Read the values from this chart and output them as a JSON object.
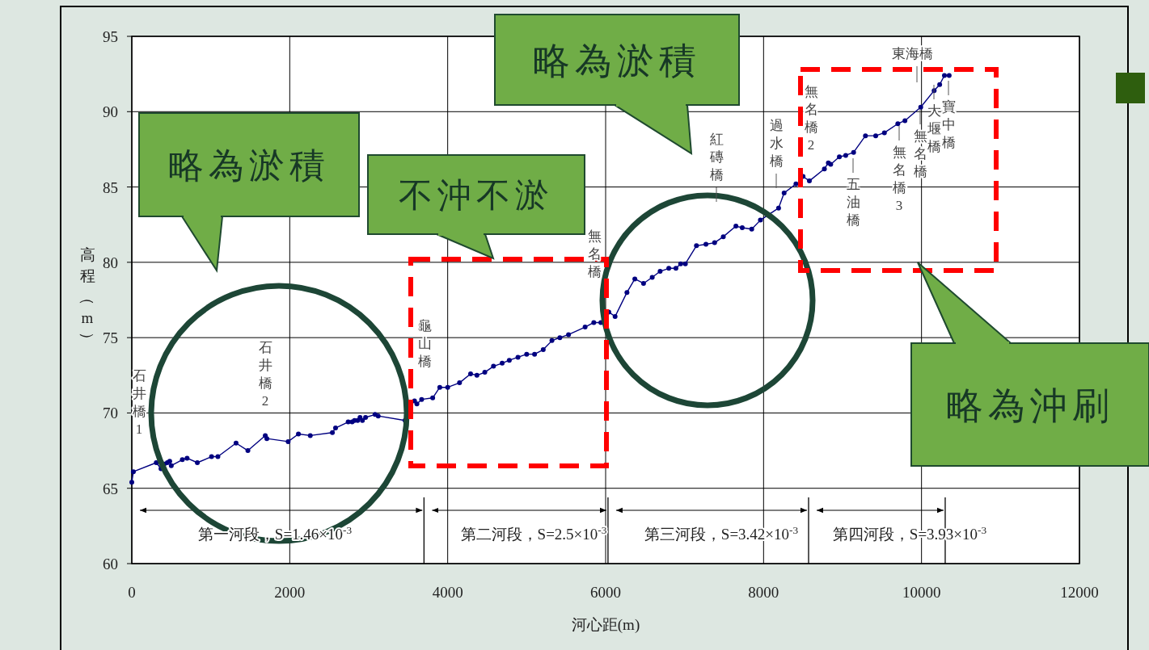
{
  "chart_data": {
    "type": "line",
    "xlabel": "河心距(m)",
    "ylabel": "高程（m）",
    "xlim": [
      0,
      12000
    ],
    "ylim": [
      60,
      95
    ],
    "xticks": [
      0,
      2000,
      4000,
      6000,
      8000,
      10000,
      12000
    ],
    "yticks": [
      60,
      65,
      70,
      75,
      80,
      85,
      90,
      95
    ],
    "grid": true,
    "marker": "circle",
    "line_style": "solid",
    "series": [
      {
        "color": "#000080",
        "x": [
          0,
          20,
          310,
          370,
          410,
          450,
          480,
          500,
          640,
          700,
          830,
          1010,
          1090,
          1320,
          1470,
          1690,
          1710,
          1980,
          2110,
          2260,
          2540,
          2580,
          2740,
          2790,
          2820,
          2860,
          2890,
          2920,
          2960,
          3080,
          3120,
          3460,
          3480,
          3580,
          3610,
          3670,
          3810,
          3900,
          4000,
          4150,
          4290,
          4370,
          4470,
          4580,
          4690,
          4780,
          4890,
          5000,
          5100,
          5210,
          5320,
          5420,
          5530,
          5740,
          5850,
          5940,
          6040,
          6120,
          6270,
          6370,
          6480,
          6590,
          6690,
          6800,
          6890,
          6950,
          7010,
          7150,
          7270,
          7380,
          7490,
          7650,
          7730,
          7850,
          7960,
          8190,
          8260,
          8410,
          8460,
          8500,
          8580,
          8770,
          8820,
          8850,
          8960,
          9040,
          9140,
          9290,
          9420,
          9530,
          9700,
          9790,
          9990,
          10160,
          10230,
          10290,
          10350
        ],
        "values": [
          65.4,
          66.1,
          66.7,
          66.3,
          66.6,
          66.7,
          66.8,
          66.5,
          66.9,
          67.0,
          66.7,
          67.1,
          67.1,
          68.0,
          67.5,
          68.5,
          68.3,
          68.1,
          68.6,
          68.5,
          68.7,
          69.0,
          69.4,
          69.4,
          69.5,
          69.5,
          69.7,
          69.5,
          69.7,
          69.9,
          69.8,
          69.5,
          70.2,
          70.8,
          70.6,
          70.9,
          71.0,
          71.7,
          71.7,
          72.0,
          72.6,
          72.5,
          72.7,
          73.1,
          73.3,
          73.5,
          73.7,
          73.9,
          73.9,
          74.2,
          74.8,
          75.0,
          75.2,
          75.7,
          76.0,
          76.0,
          76.7,
          76.4,
          78.0,
          78.9,
          78.6,
          79.0,
          79.4,
          79.6,
          79.6,
          79.9,
          79.9,
          81.1,
          81.2,
          81.3,
          81.7,
          82.4,
          82.3,
          82.2,
          82.8,
          83.6,
          84.6,
          85.2,
          85.2,
          85.7,
          85.4,
          86.2,
          86.6,
          86.5,
          87.0,
          87.1,
          87.3,
          88.4,
          88.4,
          88.6,
          89.2,
          89.4,
          90.3,
          91.4,
          91.8,
          92.4,
          92.4
        ]
      }
    ],
    "ref_lines": [
      {
        "axis": "x",
        "value": 3700,
        "label": null,
        "color": "#000000"
      },
      {
        "axis": "x",
        "value": 6030,
        "label": null,
        "color": "#000000"
      },
      {
        "axis": "x",
        "value": 8570,
        "label": null,
        "color": "#000000"
      },
      {
        "axis": "x",
        "value": 10300,
        "label": null,
        "color": "#000000"
      }
    ],
    "annotations": [
      "略為淤積",
      "不沖不淤",
      "略為淤積",
      "略為沖刷",
      "第一河段，S=1.46×10$^{-3}$",
      "第二河段，S=2.5×10$^{-3}$",
      "第三河段，S=3.42×10$^{-3}$",
      "第四河段，S=3.93×10$^{-3}$",
      "石井橋1",
      "石井橋2",
      "龜山橋",
      "無名橋",
      "紅磚橋",
      "過水橋",
      "無名橋2",
      "五油橋",
      "無名橋3",
      "東海橋",
      "無名橋",
      "大堰橋",
      "寶中橋"
    ]
  }
}
